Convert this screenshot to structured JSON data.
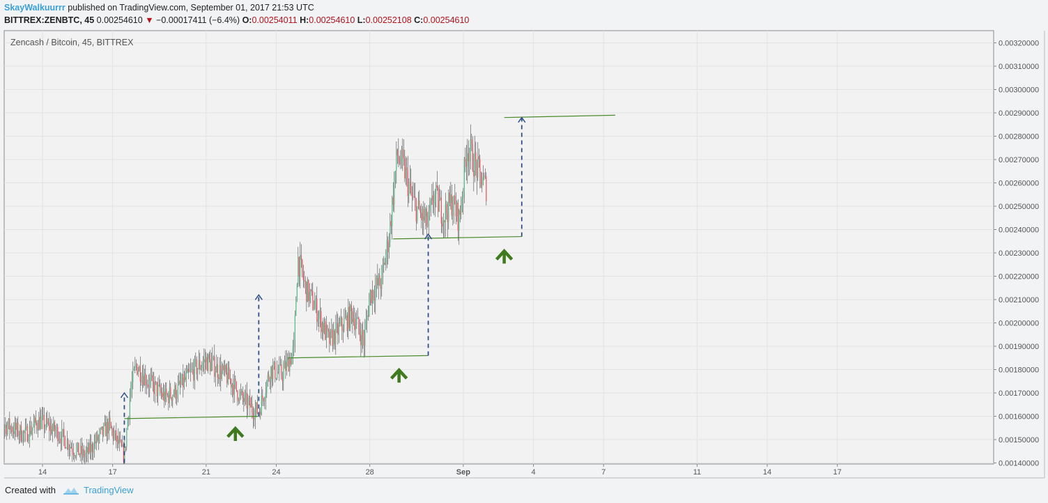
{
  "header": {
    "author": "SkayWalkuurrr",
    "published": "published on TradingView.com, September 01, 2017 21:53 UTC",
    "symbol": "BITTREX:ZENBTC, 45",
    "last": "0.00254610",
    "down_arrow": "▼",
    "change": "−0.00017411 (−6.4%)",
    "o_label": "O:",
    "o_value": "0.00254011",
    "h_label": "H:",
    "h_value": "0.00254610",
    "l_label": "L:",
    "l_value": "0.00252108",
    "c_label": "C:",
    "c_value": "0.00254610"
  },
  "footer": {
    "created_with": "Created with",
    "brand": "TradingView",
    "logo_icon": "tradingview-cloud-icon"
  },
  "colors": {
    "up": "#53b987",
    "down": "#eb4d5c",
    "trendline": "#4a8a2a",
    "projection": "#2f4f8a",
    "arrow": "#3f7a1e",
    "axis": "#555555"
  },
  "chart_data": {
    "type": "candlestick",
    "title": "Zencash / Bitcoin, 45, BITTREX",
    "x_unit": "date (Aug–Sep 2017)",
    "x_ticks": [
      {
        "label": "14",
        "date": "2017-08-14"
      },
      {
        "label": "17",
        "date": "2017-08-17"
      },
      {
        "label": "21",
        "date": "2017-08-21"
      },
      {
        "label": "24",
        "date": "2017-08-24"
      },
      {
        "label": "28",
        "date": "2017-08-28"
      },
      {
        "label": "Sep",
        "date": "2017-09-01"
      },
      {
        "label": "4",
        "date": "2017-09-04"
      },
      {
        "label": "7",
        "date": "2017-09-07"
      },
      {
        "label": "11",
        "date": "2017-09-11"
      },
      {
        "label": "14",
        "date": "2017-09-14"
      },
      {
        "label": "17",
        "date": "2017-09-17"
      }
    ],
    "y_ticks": [
      "0.00140000",
      "0.00150000",
      "0.00160000",
      "0.00170000",
      "0.00180000",
      "0.00190000",
      "0.00200000",
      "0.00210000",
      "0.00220000",
      "0.00230000",
      "0.00240000",
      "0.00250000",
      "0.00260000",
      "0.00270000",
      "0.00280000",
      "0.00290000",
      "0.00300000",
      "0.00310000",
      "0.00320000"
    ],
    "ylim": [
      0.0014,
      0.00324
    ],
    "grid": true,
    "price_path": [
      [
        "2017-08-11T20:00",
        0.00155
      ],
      [
        "2017-08-12T12:00",
        0.00156
      ],
      [
        "2017-08-13T06:00",
        0.00152
      ],
      [
        "2017-08-13T20:00",
        0.00158
      ],
      [
        "2017-08-14T16:00",
        0.00153
      ],
      [
        "2017-08-15T08:00",
        0.00146
      ],
      [
        "2017-08-15T20:00",
        0.00143
      ],
      [
        "2017-08-16T12:00",
        0.00152
      ],
      [
        "2017-08-16T20:00",
        0.00156
      ],
      [
        "2017-08-17T06:00",
        0.00148
      ],
      [
        "2017-08-17T12:00",
        0.00143
      ],
      [
        "2017-08-17T18:00",
        0.0017
      ],
      [
        "2017-08-18T00:00",
        0.00182
      ],
      [
        "2017-08-18T12:00",
        0.00175
      ],
      [
        "2017-08-19T06:00",
        0.00168
      ],
      [
        "2017-08-19T18:00",
        0.00171
      ],
      [
        "2017-08-20T12:00",
        0.0018
      ],
      [
        "2017-08-21T00:00",
        0.00184
      ],
      [
        "2017-08-21T12:00",
        0.0018
      ],
      [
        "2017-08-22T00:00",
        0.00176
      ],
      [
        "2017-08-22T12:00",
        0.00168
      ],
      [
        "2017-08-23T00:00",
        0.00163
      ],
      [
        "2017-08-23T06:00",
        0.00162
      ],
      [
        "2017-08-23T18:00",
        0.0018
      ],
      [
        "2017-08-24T06:00",
        0.00178
      ],
      [
        "2017-08-24T18:00",
        0.00188
      ],
      [
        "2017-08-24T22:00",
        0.00228
      ],
      [
        "2017-08-25T06:00",
        0.00215
      ],
      [
        "2017-08-25T18:00",
        0.00205
      ],
      [
        "2017-08-26T06:00",
        0.00192
      ],
      [
        "2017-08-26T18:00",
        0.00198
      ],
      [
        "2017-08-27T06:00",
        0.00204
      ],
      [
        "2017-08-27T18:00",
        0.00192
      ],
      [
        "2017-08-28T00:00",
        0.00212
      ],
      [
        "2017-08-28T12:00",
        0.00218
      ],
      [
        "2017-08-28T20:00",
        0.00238
      ],
      [
        "2017-08-29T04:00",
        0.00272
      ],
      [
        "2017-08-29T12:00",
        0.00265
      ],
      [
        "2017-08-29T20:00",
        0.00252
      ],
      [
        "2017-08-30T06:00",
        0.00245
      ],
      [
        "2017-08-30T12:00",
        0.00242
      ],
      [
        "2017-08-30T18:00",
        0.00255
      ],
      [
        "2017-08-31T04:00",
        0.00246
      ],
      [
        "2017-08-31T12:00",
        0.00252
      ],
      [
        "2017-08-31T20:00",
        0.00244
      ],
      [
        "2017-09-01T04:00",
        0.00276
      ],
      [
        "2017-09-01T12:00",
        0.00268
      ],
      [
        "2017-09-01T20:00",
        0.0026
      ],
      [
        "2017-09-02T00:00",
        0.00258
      ]
    ],
    "annotations": {
      "support_lines": [
        {
          "from": [
            "2017-08-17T12:00",
            0.00159
          ],
          "to": [
            "2017-08-23T06:00",
            0.0016
          ]
        },
        {
          "from": [
            "2017-08-24T12:00",
            0.00185
          ],
          "to": [
            "2017-08-30T12:00",
            0.00186
          ]
        },
        {
          "from": [
            "2017-08-29T00:00",
            0.00236
          ],
          "to": [
            "2017-09-03T12:00",
            0.00237
          ]
        },
        {
          "from": [
            "2017-09-02T18:00",
            0.00288
          ],
          "to": [
            "2017-09-07T12:00",
            0.00289
          ]
        }
      ],
      "projections": [
        {
          "x": "2017-08-17T12:00",
          "from": 0.0014,
          "to": 0.0017
        },
        {
          "x": "2017-08-23T06:00",
          "from": 0.0016,
          "to": 0.00212
        },
        {
          "x": "2017-08-30T12:00",
          "from": 0.00186,
          "to": 0.00238
        },
        {
          "x": "2017-09-03T12:00",
          "from": 0.00237,
          "to": 0.00288
        }
      ],
      "up_arrows": [
        {
          "x": "2017-08-22T06:00",
          "y": 0.00153
        },
        {
          "x": "2017-08-29T06:00",
          "y": 0.00178
        },
        {
          "x": "2017-09-02T18:00",
          "y": 0.00229
        }
      ]
    }
  }
}
